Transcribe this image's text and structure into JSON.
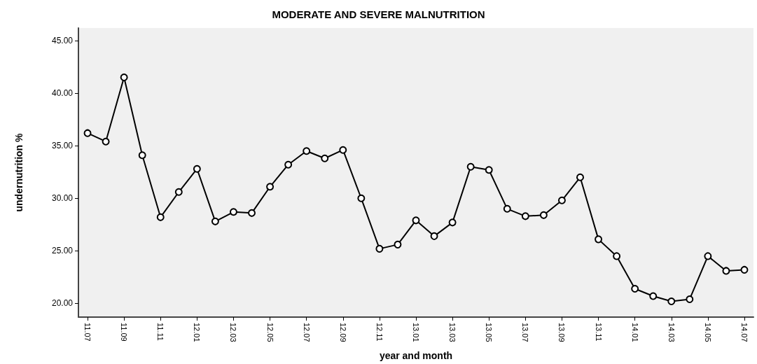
{
  "chart_data": {
    "type": "line",
    "title": "MODERATE AND SEVERE MALNUTRITION",
    "xlabel": "year and month",
    "ylabel": "undernutrition %",
    "categories": [
      "11.07",
      null,
      "11.09",
      null,
      "11.11",
      null,
      "12.01",
      null,
      "12.03",
      null,
      "12.05",
      null,
      "12.07",
      null,
      "12.09",
      null,
      "12.11",
      null,
      "13.01",
      null,
      "13.03",
      null,
      "13.05",
      null,
      "13.07",
      null,
      "13.09",
      null,
      "13.11",
      null,
      "14.01",
      null,
      "14.03",
      null,
      "14.05",
      null,
      "14.07"
    ],
    "values": [
      36.2,
      35.4,
      41.5,
      34.1,
      28.2,
      30.6,
      32.8,
      27.8,
      28.7,
      28.6,
      31.1,
      33.2,
      34.5,
      33.8,
      34.6,
      30.0,
      25.2,
      25.6,
      27.9,
      26.4,
      27.7,
      33.0,
      32.7,
      29.0,
      28.3,
      28.4,
      29.8,
      32.0,
      26.1,
      24.5,
      21.4,
      20.7,
      20.2,
      20.4,
      24.5,
      23.1,
      23.2
    ],
    "color": "#000000",
    "marker": "circle",
    "line_style": "solid",
    "grid": false,
    "ylim": [
      18.7,
      46.2
    ],
    "yticks": [
      {
        "value": 20,
        "label": "20.00"
      },
      {
        "value": 25,
        "label": "25.00"
      },
      {
        "value": 30,
        "label": "30.00"
      },
      {
        "value": 35,
        "label": "35.00"
      },
      {
        "value": 40,
        "label": "40.00"
      },
      {
        "value": 45,
        "label": "45.00"
      }
    ]
  }
}
